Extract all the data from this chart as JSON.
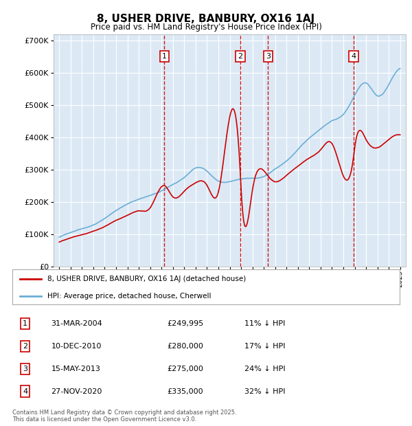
{
  "title": "8, USHER DRIVE, BANBURY, OX16 1AJ",
  "subtitle": "Price paid vs. HM Land Registry's House Price Index (HPI)",
  "ylim": [
    0,
    720000
  ],
  "yticks": [
    0,
    100000,
    200000,
    300000,
    400000,
    500000,
    600000,
    700000
  ],
  "ytick_labels": [
    "£0",
    "£100K",
    "£200K",
    "£300K",
    "£400K",
    "£500K",
    "£600K",
    "£700K"
  ],
  "plot_bg_color": "#dce9f5",
  "grid_color": "#ffffff",
  "line_color_hpi": "#6aaed6",
  "line_color_price": "#cc0000",
  "vline_color": "#cc0000",
  "legend_label_price": "8, USHER DRIVE, BANBURY, OX16 1AJ (detached house)",
  "legend_label_hpi": "HPI: Average price, detached house, Cherwell",
  "footnote": "Contains HM Land Registry data © Crown copyright and database right 2025.\nThis data is licensed under the Open Government Licence v3.0.",
  "transactions": [
    {
      "num": 1,
      "date": "31-MAR-2004",
      "price": "£249,995",
      "pct": "11% ↓ HPI"
    },
    {
      "num": 2,
      "date": "10-DEC-2010",
      "price": "£280,000",
      "pct": "17% ↓ HPI"
    },
    {
      "num": 3,
      "date": "15-MAY-2013",
      "price": "£275,000",
      "pct": "24% ↓ HPI"
    },
    {
      "num": 4,
      "date": "27-NOV-2020",
      "price": "£335,000",
      "pct": "32% ↓ HPI"
    }
  ],
  "vline_years": [
    2004.25,
    2010.94,
    2013.37,
    2020.91
  ],
  "marker_nums": [
    1,
    2,
    3,
    4
  ],
  "xmin": 1994.5,
  "xmax": 2025.5,
  "xtick_years": [
    1995,
    1996,
    1997,
    1998,
    1999,
    2000,
    2001,
    2002,
    2003,
    2004,
    2005,
    2006,
    2007,
    2008,
    2009,
    2010,
    2011,
    2012,
    2013,
    2014,
    2015,
    2016,
    2017,
    2018,
    2019,
    2020,
    2021,
    2022,
    2023,
    2024,
    2025
  ],
  "hpi_years": [
    1995,
    1996,
    1997,
    1998,
    1999,
    2000,
    2001,
    2002,
    2003,
    2004,
    2005,
    2006,
    2007,
    2008,
    2009,
    2010,
    2011,
    2012,
    2013,
    2014,
    2015,
    2016,
    2017,
    2018,
    2019,
    2020,
    2021,
    2022,
    2023,
    2024,
    2025
  ],
  "hpi_vals": [
    90000,
    105000,
    118000,
    130000,
    150000,
    175000,
    195000,
    210000,
    222000,
    235000,
    255000,
    275000,
    305000,
    295000,
    265000,
    263000,
    270000,
    272000,
    278000,
    300000,
    325000,
    360000,
    395000,
    425000,
    450000,
    470000,
    530000,
    570000,
    530000,
    565000,
    615000
  ],
  "price_years": [
    1995,
    1996,
    1997,
    1998,
    1999,
    2000,
    2001,
    2002,
    2003,
    2004.25,
    2005,
    2006,
    2007,
    2008,
    2009,
    2010.94,
    2011,
    2012,
    2013.37,
    2014,
    2015,
    2016,
    2017,
    2018,
    2019,
    2020.91,
    2021,
    2022,
    2023,
    2024,
    2025
  ],
  "price_vals": [
    75000,
    87000,
    97000,
    108000,
    123000,
    142000,
    158000,
    172000,
    182000,
    249995,
    215000,
    232000,
    258000,
    250000,
    228000,
    280000,
    238000,
    232000,
    275000,
    258000,
    278000,
    305000,
    330000,
    355000,
    375000,
    335000,
    360000,
    385000,
    360000,
    385000,
    400000
  ]
}
